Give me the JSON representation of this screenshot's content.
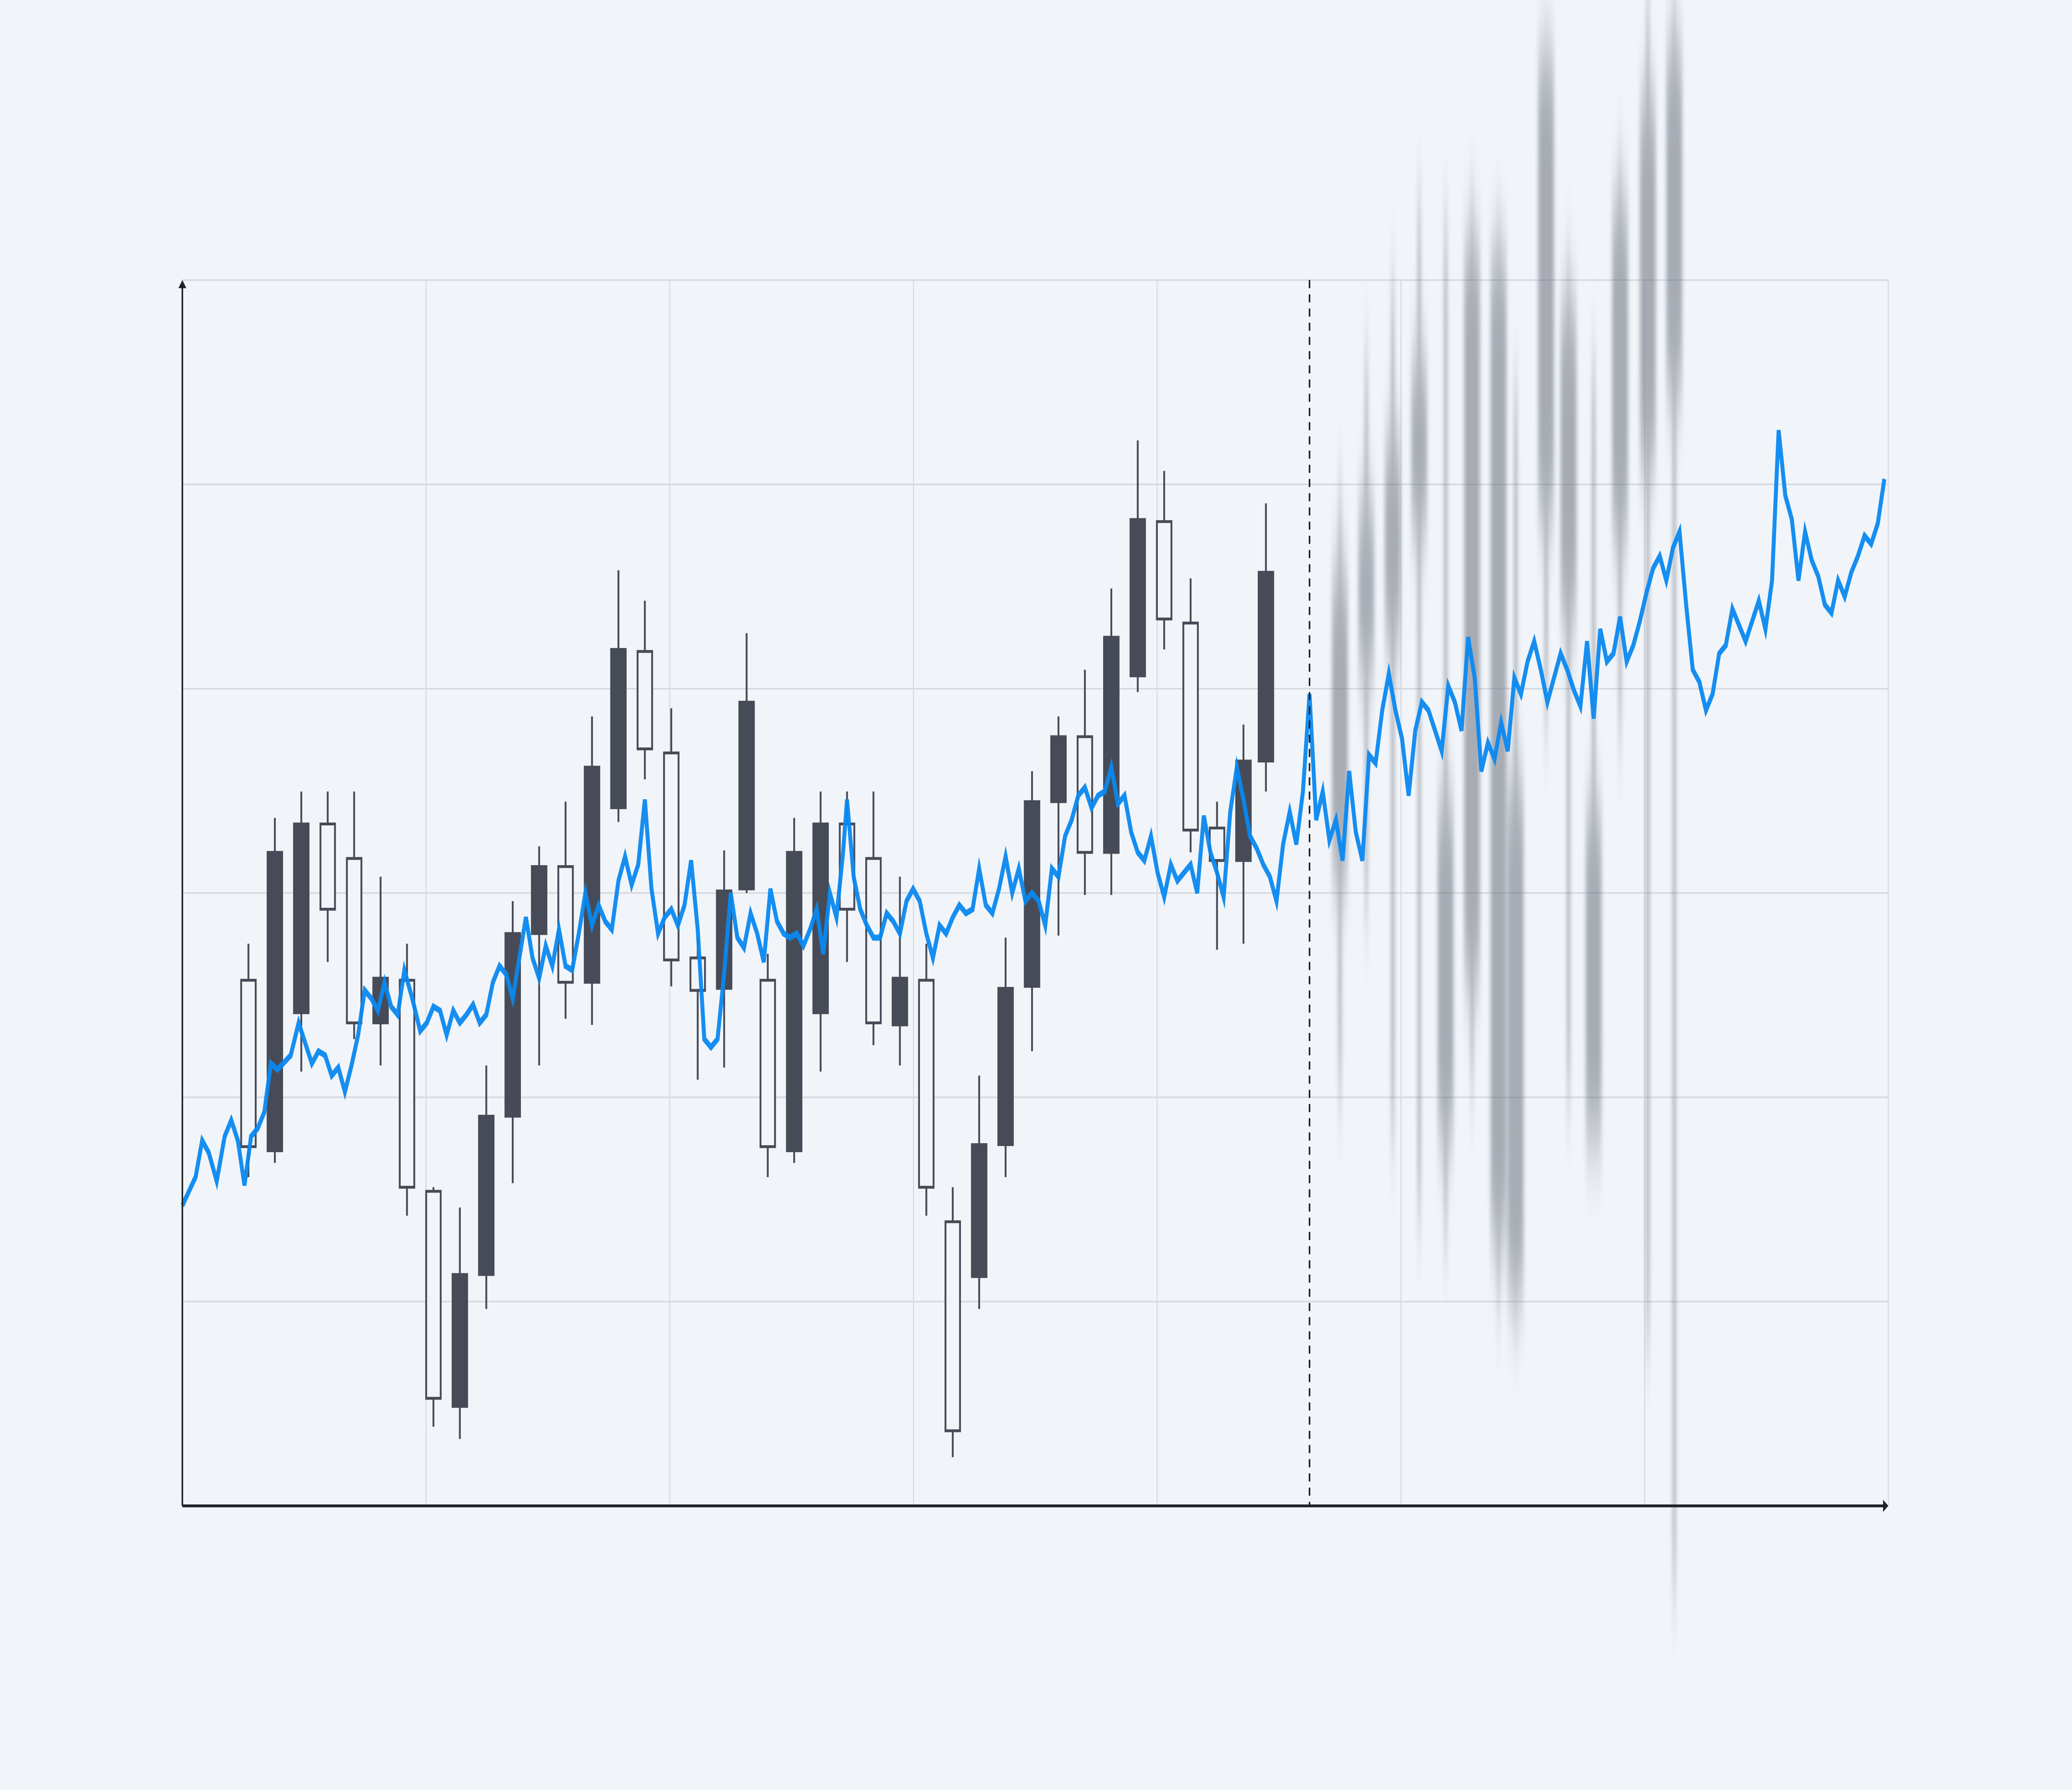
{
  "chart_data": {
    "type": "candlestick+line",
    "title": "",
    "xlabel": "",
    "ylabel": "",
    "xlim": [
      0,
      1291
    ],
    "ylim": [
      0,
      604
    ],
    "grid": {
      "x_divisions": 7,
      "y_divisions": 6,
      "visible": true
    },
    "forecast_start_x": 853,
    "colors": {
      "background": "#f1f5f9",
      "grid": "#d6dae1",
      "axis": "#1f232b",
      "candle": "#474b57",
      "line": "#0a88f0"
    },
    "candles": [
      {
        "x": 50,
        "open": 177,
        "high": 277,
        "low": 162,
        "close": 259
      },
      {
        "x": 70,
        "open": 322,
        "high": 339,
        "low": 169,
        "close": 175
      },
      {
        "x": 90,
        "open": 336,
        "high": 352,
        "low": 214,
        "close": 243
      },
      {
        "x": 110,
        "open": 294,
        "high": 352,
        "low": 268,
        "close": 336
      },
      {
        "x": 130,
        "open": 238,
        "high": 352,
        "low": 230,
        "close": 319
      },
      {
        "x": 150,
        "open": 260,
        "high": 310,
        "low": 217,
        "close": 238
      },
      {
        "x": 170,
        "open": 157,
        "high": 277,
        "low": 143,
        "close": 259
      },
      {
        "x": 190,
        "open": 53,
        "high": 157,
        "low": 39,
        "close": 155
      },
      {
        "x": 210,
        "open": 114,
        "high": 147,
        "low": 33,
        "close": 49
      },
      {
        "x": 230,
        "open": 192,
        "high": 217,
        "low": 97,
        "close": 114
      },
      {
        "x": 250,
        "open": 282,
        "high": 298,
        "low": 159,
        "close": 192
      },
      {
        "x": 270,
        "open": 315,
        "high": 325,
        "low": 217,
        "close": 282
      },
      {
        "x": 290,
        "open": 258,
        "high": 347,
        "low": 240,
        "close": 315
      },
      {
        "x": 310,
        "open": 364,
        "high": 389,
        "low": 237,
        "close": 258
      },
      {
        "x": 330,
        "open": 422,
        "high": 461,
        "low": 337,
        "close": 344
      },
      {
        "x": 350,
        "open": 373,
        "high": 446,
        "low": 358,
        "close": 421
      },
      {
        "x": 370,
        "open": 269,
        "high": 393,
        "low": 256,
        "close": 371
      },
      {
        "x": 390,
        "open": 254,
        "high": 280,
        "low": 210,
        "close": 270
      },
      {
        "x": 410,
        "open": 303,
        "high": 323,
        "low": 216,
        "close": 255
      },
      {
        "x": 427,
        "open": 396,
        "high": 430,
        "low": 302,
        "close": 304
      },
      {
        "x": 443,
        "open": 177,
        "high": 272,
        "low": 162,
        "close": 259
      },
      {
        "x": 463,
        "open": 322,
        "high": 339,
        "low": 169,
        "close": 175
      },
      {
        "x": 483,
        "open": 336,
        "high": 352,
        "low": 214,
        "close": 243
      },
      {
        "x": 503,
        "open": 294,
        "high": 352,
        "low": 268,
        "close": 336
      },
      {
        "x": 523,
        "open": 238,
        "high": 352,
        "low": 227,
        "close": 319
      },
      {
        "x": 543,
        "open": 260,
        "high": 310,
        "low": 217,
        "close": 237
      },
      {
        "x": 563,
        "open": 157,
        "high": 277,
        "low": 143,
        "close": 259
      },
      {
        "x": 583,
        "open": 37,
        "high": 157,
        "low": 24,
        "close": 140
      },
      {
        "x": 603,
        "open": 178,
        "high": 212,
        "low": 97,
        "close": 113
      },
      {
        "x": 623,
        "open": 255,
        "high": 280,
        "low": 162,
        "close": 178
      },
      {
        "x": 643,
        "open": 347,
        "high": 362,
        "low": 224,
        "close": 256
      },
      {
        "x": 663,
        "open": 379,
        "high": 389,
        "low": 281,
        "close": 347
      },
      {
        "x": 683,
        "open": 322,
        "high": 412,
        "low": 301,
        "close": 379
      },
      {
        "x": 703,
        "open": 428,
        "high": 452,
        "low": 301,
        "close": 322
      },
      {
        "x": 723,
        "open": 486,
        "high": 525,
        "low": 401,
        "close": 409
      },
      {
        "x": 743,
        "open": 437,
        "high": 510,
        "low": 422,
        "close": 485
      },
      {
        "x": 763,
        "open": 333,
        "high": 457,
        "low": 322,
        "close": 435
      },
      {
        "x": 783,
        "open": 318,
        "high": 347,
        "low": 274,
        "close": 334
      },
      {
        "x": 803,
        "open": 367,
        "high": 385,
        "low": 277,
        "close": 318
      },
      {
        "x": 820,
        "open": 460,
        "high": 494,
        "low": 352,
        "close": 367
      }
    ],
    "forecast_candles": [
      {
        "x": 876,
        "high": 498,
        "low": 204,
        "top": 458,
        "bottom": 310
      },
      {
        "x": 896,
        "high": 564,
        "low": 295,
        "top": 492,
        "bottom": 412
      },
      {
        "x": 916,
        "high": 600,
        "low": 183,
        "top": 524,
        "bottom": 427
      },
      {
        "x": 936,
        "high": 640,
        "low": 143,
        "top": 562,
        "bottom": 482
      },
      {
        "x": 956,
        "high": 630,
        "low": 133,
        "top": 346,
        "bottom": 183
      },
      {
        "x": 976,
        "high": 642,
        "low": 209,
        "top": 620,
        "bottom": 260
      },
      {
        "x": 996,
        "high": 630,
        "low": 102,
        "top": 615,
        "bottom": 133
      },
      {
        "x": 1009,
        "high": 549,
        "low": 92,
        "top": 356,
        "bottom": 107
      },
      {
        "x": 1032,
        "high": 722,
        "low": 387,
        "top": 712,
        "bottom": 488
      },
      {
        "x": 1049,
        "high": 612,
        "low": 202,
        "top": 590,
        "bottom": 437
      },
      {
        "x": 1068,
        "high": 562,
        "low": 182,
        "top": 342,
        "bottom": 182
      },
      {
        "x": 1088,
        "high": 662,
        "low": 382,
        "top": 640,
        "bottom": 478
      },
      {
        "x": 1109,
        "high": 742,
        "low": 82,
        "top": 691,
        "bottom": 514
      },
      {
        "x": 1129,
        "high": 742,
        "low": -40,
        "top": 717,
        "bottom": 549
      }
    ],
    "line": [
      [
        0,
        148
      ],
      [
        10,
        162
      ],
      [
        15,
        180
      ],
      [
        20,
        174
      ],
      [
        26,
        160
      ],
      [
        32,
        182
      ],
      [
        37,
        190
      ],
      [
        42,
        180
      ],
      [
        47,
        158
      ],
      [
        52,
        182
      ],
      [
        57,
        186
      ],
      [
        62,
        194
      ],
      [
        67,
        218
      ],
      [
        72,
        215
      ],
      [
        82,
        222
      ],
      [
        88,
        238
      ],
      [
        98,
        218
      ],
      [
        103,
        224
      ],
      [
        108,
        222
      ],
      [
        113,
        212
      ],
      [
        118,
        216
      ],
      [
        123,
        204
      ],
      [
        128,
        217
      ],
      [
        133,
        232
      ],
      [
        138,
        254
      ],
      [
        143,
        250
      ],
      [
        148,
        244
      ],
      [
        153,
        258
      ],
      [
        158,
        246
      ],
      [
        163,
        242
      ],
      [
        168,
        264
      ],
      [
        174,
        250
      ],
      [
        180,
        234
      ],
      [
        185,
        238
      ],
      [
        190,
        246
      ],
      [
        195,
        244
      ],
      [
        200,
        232
      ],
      [
        205,
        244
      ],
      [
        210,
        238
      ],
      [
        215,
        242
      ],
      [
        220,
        247
      ],
      [
        225,
        238
      ],
      [
        230,
        242
      ],
      [
        235,
        258
      ],
      [
        240,
        266
      ],
      [
        245,
        262
      ],
      [
        250,
        250
      ],
      [
        255,
        270
      ],
      [
        260,
        290
      ],
      [
        265,
        270
      ],
      [
        270,
        260
      ],
      [
        275,
        276
      ],
      [
        280,
        266
      ],
      [
        285,
        284
      ],
      [
        290,
        266
      ],
      [
        295,
        264
      ],
      [
        300,
        282
      ],
      [
        305,
        302
      ],
      [
        310,
        286
      ],
      [
        315,
        296
      ],
      [
        320,
        288
      ],
      [
        325,
        284
      ],
      [
        330,
        308
      ],
      [
        335,
        320
      ],
      [
        340,
        306
      ],
      [
        345,
        316
      ],
      [
        350,
        348
      ],
      [
        355,
        304
      ],
      [
        360,
        282
      ],
      [
        365,
        290
      ],
      [
        370,
        294
      ],
      [
        375,
        286
      ],
      [
        380,
        296
      ],
      [
        385,
        318
      ],
      [
        390,
        284
      ],
      [
        395,
        230
      ],
      [
        400,
        226
      ],
      [
        405,
        230
      ],
      [
        410,
        262
      ],
      [
        415,
        302
      ],
      [
        420,
        280
      ],
      [
        425,
        275
      ],
      [
        430,
        292
      ],
      [
        435,
        282
      ],
      [
        440,
        268
      ],
      [
        445,
        304
      ],
      [
        450,
        288
      ],
      [
        455,
        282
      ],
      [
        460,
        280
      ],
      [
        465,
        282
      ],
      [
        470,
        276
      ],
      [
        475,
        284
      ],
      [
        480,
        294
      ],
      [
        485,
        272
      ],
      [
        490,
        302
      ],
      [
        495,
        290
      ],
      [
        500,
        322
      ],
      [
        503,
        348
      ],
      [
        508,
        310
      ],
      [
        513,
        294
      ],
      [
        518,
        286
      ],
      [
        523,
        280
      ],
      [
        528,
        280
      ],
      [
        533,
        292
      ],
      [
        538,
        288
      ],
      [
        543,
        282
      ],
      [
        548,
        298
      ],
      [
        553,
        304
      ],
      [
        558,
        298
      ],
      [
        563,
        282
      ],
      [
        568,
        270
      ],
      [
        573,
        286
      ],
      [
        578,
        282
      ],
      [
        583,
        290
      ],
      [
        588,
        296
      ],
      [
        593,
        292
      ],
      [
        598,
        294
      ],
      [
        603,
        314
      ],
      [
        608,
        296
      ],
      [
        613,
        292
      ],
      [
        618,
        304
      ],
      [
        623,
        320
      ],
      [
        628,
        302
      ],
      [
        633,
        314
      ],
      [
        638,
        298
      ],
      [
        643,
        302
      ],
      [
        648,
        298
      ],
      [
        653,
        286
      ],
      [
        658,
        314
      ],
      [
        663,
        310
      ],
      [
        668,
        330
      ],
      [
        673,
        338
      ],
      [
        678,
        350
      ],
      [
        683,
        354
      ],
      [
        688,
        344
      ],
      [
        693,
        350
      ],
      [
        698,
        352
      ],
      [
        703,
        364
      ],
      [
        708,
        346
      ],
      [
        713,
        350
      ],
      [
        718,
        332
      ],
      [
        723,
        322
      ],
      [
        728,
        318
      ],
      [
        733,
        330
      ],
      [
        738,
        312
      ],
      [
        743,
        300
      ],
      [
        748,
        316
      ],
      [
        753,
        308
      ],
      [
        758,
        312
      ],
      [
        763,
        316
      ],
      [
        768,
        302
      ],
      [
        773,
        340
      ],
      [
        778,
        322
      ],
      [
        783,
        312
      ],
      [
        788,
        300
      ],
      [
        793,
        342
      ],
      [
        798,
        364
      ],
      [
        803,
        348
      ],
      [
        808,
        330
      ],
      [
        813,
        324
      ],
      [
        818,
        316
      ],
      [
        823,
        310
      ],
      [
        828,
        298
      ],
      [
        833,
        326
      ],
      [
        838,
        342
      ],
      [
        843,
        326
      ],
      [
        848,
        352
      ],
      [
        853,
        400
      ],
      [
        858,
        338
      ],
      [
        863,
        352
      ],
      [
        868,
        328
      ],
      [
        873,
        338
      ],
      [
        878,
        318
      ],
      [
        883,
        362
      ],
      [
        888,
        332
      ],
      [
        893,
        318
      ],
      [
        898,
        370
      ],
      [
        903,
        366
      ],
      [
        908,
        392
      ],
      [
        913,
        410
      ],
      [
        918,
        392
      ],
      [
        923,
        378
      ],
      [
        928,
        350
      ],
      [
        933,
        382
      ],
      [
        938,
        396
      ],
      [
        943,
        392
      ],
      [
        948,
        382
      ],
      [
        953,
        372
      ],
      [
        958,
        404
      ],
      [
        963,
        396
      ],
      [
        968,
        382
      ],
      [
        973,
        428
      ],
      [
        978,
        408
      ],
      [
        983,
        362
      ],
      [
        988,
        376
      ],
      [
        993,
        368
      ],
      [
        998,
        386
      ],
      [
        1003,
        372
      ],
      [
        1008,
        408
      ],
      [
        1013,
        400
      ],
      [
        1018,
        416
      ],
      [
        1023,
        426
      ],
      [
        1028,
        412
      ],
      [
        1033,
        396
      ],
      [
        1038,
        408
      ],
      [
        1043,
        420
      ],
      [
        1048,
        412
      ],
      [
        1053,
        402
      ],
      [
        1058,
        394
      ],
      [
        1063,
        426
      ],
      [
        1068,
        388
      ],
      [
        1073,
        432
      ],
      [
        1078,
        416
      ],
      [
        1083,
        420
      ],
      [
        1088,
        438
      ],
      [
        1093,
        416
      ],
      [
        1098,
        424
      ],
      [
        1103,
        436
      ],
      [
        1108,
        450
      ],
      [
        1113,
        462
      ],
      [
        1118,
        468
      ],
      [
        1123,
        456
      ],
      [
        1128,
        472
      ],
      [
        1133,
        480
      ],
      [
        1138,
        444
      ],
      [
        1143,
        412
      ],
      [
        1148,
        406
      ],
      [
        1153,
        392
      ],
      [
        1158,
        400
      ],
      [
        1163,
        420
      ],
      [
        1168,
        424
      ],
      [
        1173,
        442
      ],
      [
        1178,
        434
      ],
      [
        1183,
        426
      ],
      [
        1188,
        436
      ],
      [
        1193,
        446
      ],
      [
        1198,
        432
      ],
      [
        1203,
        456
      ],
      [
        1208,
        530
      ],
      [
        1213,
        498
      ],
      [
        1218,
        486
      ],
      [
        1223,
        456
      ],
      [
        1228,
        480
      ],
      [
        1233,
        466
      ],
      [
        1238,
        458
      ],
      [
        1243,
        444
      ],
      [
        1248,
        440
      ],
      [
        1253,
        456
      ],
      [
        1258,
        448
      ],
      [
        1263,
        460
      ],
      [
        1268,
        468
      ],
      [
        1273,
        478
      ],
      [
        1278,
        474
      ],
      [
        1283,
        484
      ],
      [
        1288,
        506
      ]
    ]
  }
}
